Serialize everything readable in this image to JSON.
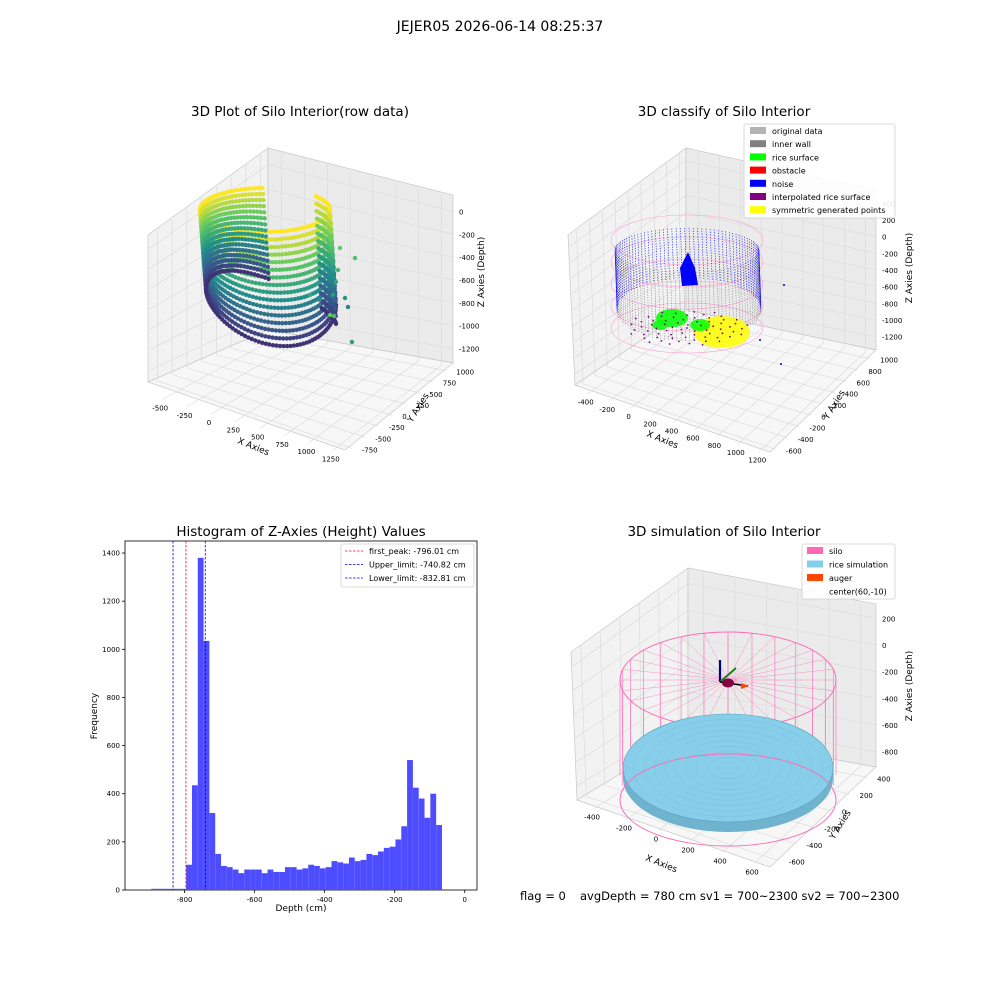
{
  "suptitle": "JEJER05 2026-06-14 08:25:37",
  "footer": {
    "flag": "flag = 0",
    "stats": "avgDepth = 780 cm  sv1 = 700~2300  sv2 = 700~2300"
  },
  "chart_data": [
    {
      "type": "scatter",
      "projection": "3d",
      "title": "3D Plot of Silo Interior(row data)",
      "xlabel": "X Axies",
      "ylabel": "Y Axies",
      "zlabel": "Z Axies (Depth)",
      "x_ticks": [
        "-500",
        "-250",
        "0",
        "250",
        "500",
        "750",
        "1000",
        "1250"
      ],
      "y_ticks": [
        "-750",
        "-500",
        "-250",
        "0",
        "250",
        "500",
        "750",
        "1000"
      ],
      "z_ticks": [
        "0",
        "-200",
        "-400",
        "-600",
        "-800",
        "-1000",
        "-1200"
      ],
      "colormap": "viridis",
      "grid": true
    },
    {
      "type": "scatter",
      "projection": "3d",
      "title": "3D classify of Silo Interior",
      "xlabel": "X Axies",
      "ylabel": "Y Axies",
      "zlabel": "Z Axies (Depth)",
      "x_ticks": [
        "-400",
        "-200",
        "0",
        "200",
        "400",
        "600",
        "800",
        "1000",
        "1200"
      ],
      "y_ticks": [
        "-600",
        "-400",
        "-200",
        "0",
        "200",
        "400",
        "600",
        "800",
        "1000"
      ],
      "z_ticks": [
        "400",
        "200",
        "0",
        "-200",
        "-400",
        "-600",
        "-800",
        "-1000",
        "-1200"
      ],
      "legend_position": "top-right",
      "legend": [
        {
          "label": "original data",
          "color": "#b3b3b3"
        },
        {
          "label": "inner wall",
          "color": "#808080"
        },
        {
          "label": "rice surface",
          "color": "#00ff00"
        },
        {
          "label": "obstacle",
          "color": "#ff0000"
        },
        {
          "label": "noise",
          "color": "#0000ff"
        },
        {
          "label": "interpolated rice surface",
          "color": "#800080"
        },
        {
          "label": "symmetric generated points",
          "color": "#ffff00"
        }
      ],
      "grid": true
    },
    {
      "type": "bar",
      "subtype": "histogram",
      "title": "Histogram of Z-Axies (Height) Values",
      "xlabel": "Depth (cm)",
      "ylabel": "Frequency",
      "xlim": [
        -970,
        35
      ],
      "ylim": [
        0,
        1450
      ],
      "x_ticks": [
        -800,
        -600,
        -400,
        -200,
        0
      ],
      "y_ticks": [
        0,
        200,
        400,
        600,
        800,
        1000,
        1200,
        1400
      ],
      "bin_width": 16.6,
      "bin_start": -895,
      "values": [
        5,
        5,
        5,
        5,
        5,
        5,
        105,
        435,
        1380,
        1035,
        320,
        150,
        100,
        95,
        85,
        70,
        85,
        85,
        85,
        70,
        85,
        75,
        75,
        95,
        95,
        85,
        90,
        105,
        100,
        90,
        95,
        120,
        115,
        110,
        135,
        120,
        125,
        150,
        145,
        160,
        175,
        180,
        210,
        265,
        540,
        425,
        380,
        300,
        400,
        270
      ],
      "bar_color": "#4d4dff",
      "vlines": [
        {
          "label": "first_peak: -796.01 cm",
          "x": -796.01,
          "color": "#ff0000"
        },
        {
          "label": "Upper_limit: -740.82 cm",
          "x": -740.82,
          "color": "#0000cc"
        },
        {
          "label": "Lower_limit: -832.81 cm",
          "x": -832.81,
          "color": "#0000cc"
        }
      ],
      "legend_position": "top-right",
      "grid": false
    },
    {
      "type": "scatter",
      "projection": "3d",
      "title": "3D simulation of Silo Interior",
      "xlabel": "X Axies",
      "ylabel": "Y Axies",
      "zlabel": "Z Axies (Depth)",
      "x_ticks": [
        "-400",
        "-200",
        "0",
        "200",
        "400",
        "600"
      ],
      "y_ticks": [
        "-600",
        "-400",
        "-200",
        "0",
        "200",
        "400"
      ],
      "z_ticks": [
        "200",
        "0",
        "-200",
        "-400",
        "-600",
        "-800"
      ],
      "legend_position": "top-right",
      "legend": [
        {
          "label": "silo",
          "color": "#ff69b4"
        },
        {
          "label": "rice simulation",
          "color": "#87ceeb"
        },
        {
          "label": "auger",
          "color": "#ff4500"
        },
        {
          "label": "center(60,-10)",
          "color": ""
        }
      ],
      "grid": true
    }
  ]
}
